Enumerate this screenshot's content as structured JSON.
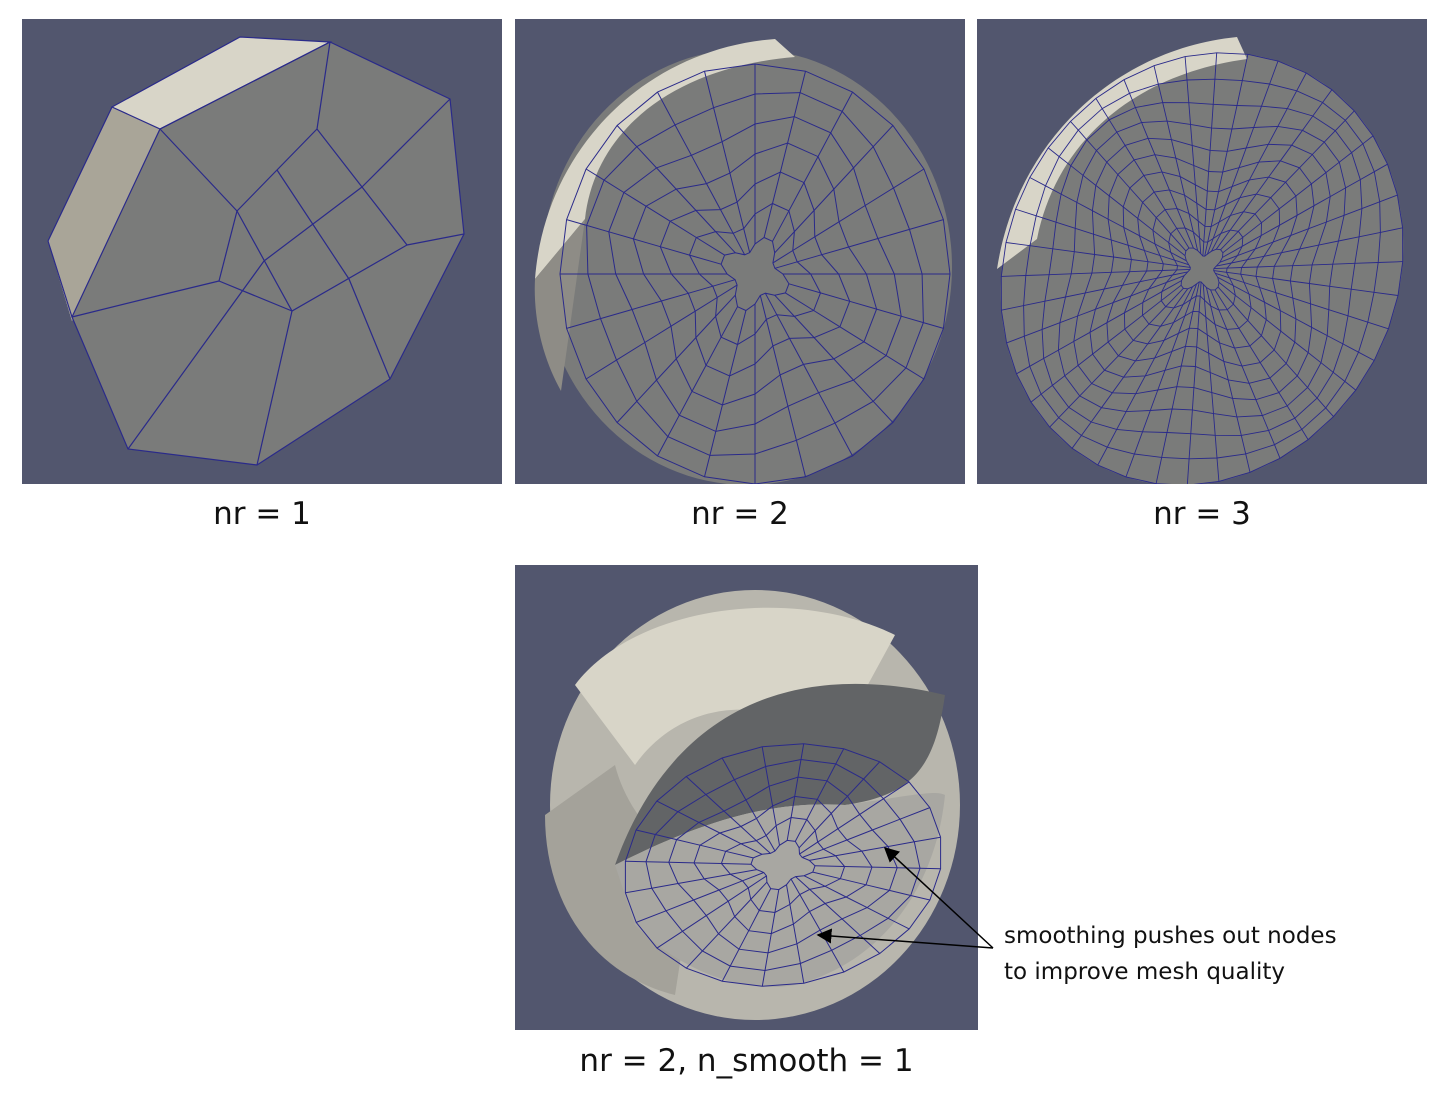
{
  "panels": [
    {
      "id": "nr1",
      "caption": "nr = 1"
    },
    {
      "id": "nr2",
      "caption": "nr = 2"
    },
    {
      "id": "nr3",
      "caption": "nr = 3"
    },
    {
      "id": "nr2s",
      "caption": "nr = 2, n_smooth = 1"
    }
  ],
  "annotation": {
    "line1": "smoothing pushes out nodes",
    "line2": "to improve mesh quality"
  },
  "colors": {
    "background": "#52566e",
    "mesh_face": "#7a7b7a",
    "mesh_side_light": "#d8d5c8",
    "mesh_side_dark": "#8e8c86",
    "mesh_edge": "#2a2a8a"
  }
}
